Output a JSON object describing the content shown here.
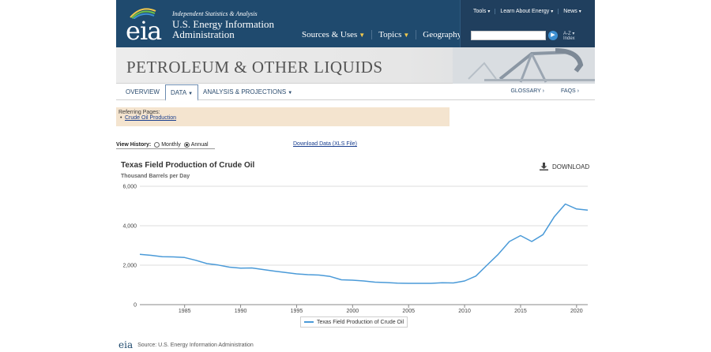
{
  "header": {
    "logo": "eia",
    "tagline": "Independent Statistics & Analysis",
    "agency_line1": "U.S. Energy Information",
    "agency_line2": "Administration",
    "nav": [
      {
        "label": "Sources & Uses"
      },
      {
        "label": "Topics"
      },
      {
        "label": "Geography"
      }
    ],
    "top_links": [
      {
        "label": "Tools"
      },
      {
        "label": "Learn About Energy"
      },
      {
        "label": "News"
      }
    ],
    "search": {
      "placeholder": "",
      "value": ""
    },
    "az_line1": "A-Z",
    "az_line2": "Index"
  },
  "banner": {
    "title": "PETROLEUM & OTHER LIQUIDS"
  },
  "subnav": {
    "overview": "OVERVIEW",
    "data": "DATA",
    "analysis": "ANALYSIS & PROJECTIONS",
    "glossary": "GLOSSARY ›",
    "faqs": "FAQS ›"
  },
  "referring": {
    "label": "Referring Pages:",
    "link": "Crude Oil Production"
  },
  "view_history": {
    "label": "View History:",
    "monthly": "Monthly",
    "annual": "Annual",
    "selected": "Annual"
  },
  "download_xls": "Download Data (XLS File)",
  "chart_header": {
    "title": "Texas Field Production of Crude Oil",
    "subtitle": "Thousand Barrels per Day",
    "download": "DOWNLOAD"
  },
  "chart_data": {
    "type": "line",
    "title": "Texas Field Production of Crude Oil",
    "ylabel": "Thousand Barrels per Day",
    "xlabel": "",
    "xlim": [
      1981,
      2021
    ],
    "ylim": [
      0,
      6000
    ],
    "x_ticks": [
      1985,
      1990,
      1995,
      2000,
      2005,
      2010,
      2015,
      2020
    ],
    "y_ticks": [
      0,
      2000,
      4000,
      6000
    ],
    "y_tick_labels": [
      "0",
      "2,000",
      "4,000",
      "6,000"
    ],
    "grid": "horizontal",
    "legend": "bottom-center",
    "color": "#4a9ad8",
    "series": [
      {
        "name": "Texas Field Production of Crude Oil",
        "x": [
          1981,
          1982,
          1983,
          1984,
          1985,
          1986,
          1987,
          1988,
          1989,
          1990,
          1991,
          1992,
          1993,
          1994,
          1995,
          1996,
          1997,
          1998,
          1999,
          2000,
          2001,
          2002,
          2003,
          2004,
          2005,
          2006,
          2007,
          2008,
          2009,
          2010,
          2011,
          2012,
          2013,
          2014,
          2015,
          2016,
          2017,
          2018,
          2019,
          2020,
          2021
        ],
        "values": [
          2550,
          2500,
          2430,
          2420,
          2390,
          2250,
          2080,
          2010,
          1900,
          1850,
          1860,
          1780,
          1700,
          1630,
          1560,
          1520,
          1500,
          1430,
          1260,
          1240,
          1200,
          1140,
          1120,
          1090,
          1080,
          1080,
          1080,
          1110,
          1100,
          1200,
          1450,
          2000,
          2550,
          3200,
          3500,
          3200,
          3550,
          4450,
          5100,
          4850,
          4790
        ]
      }
    ]
  },
  "legend_label": "Texas Field Production of Crude Oil",
  "footer": {
    "logo": "eia",
    "source": "Source: U.S. Energy Information Administration"
  }
}
